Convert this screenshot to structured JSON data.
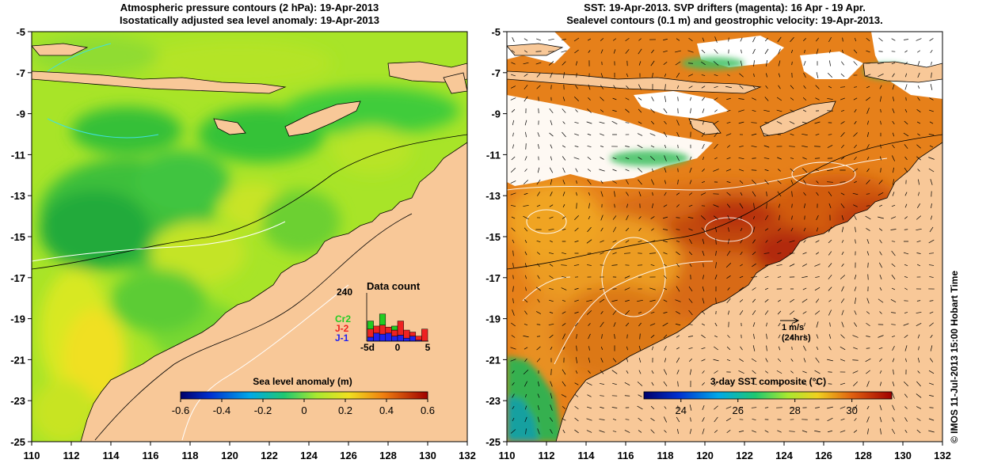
{
  "left_panel": {
    "title_line1": "Atmospheric pressure contours (2 hPa): 19-Apr-2013",
    "title_line2": "Isostatically adjusted sea level anomaly: 19-Apr-2013",
    "colorbar": {
      "title": "Sea level anomaly (m)",
      "ticks": [
        "-0.6",
        "-0.4",
        "-0.2",
        "0",
        "0.2",
        "0.4",
        "0.6"
      ],
      "range": [
        -0.6,
        0.6
      ]
    },
    "inset": {
      "title": "Data count",
      "ymax_label": "240",
      "legend": [
        {
          "label": "Cr2",
          "color": "#22cc22"
        },
        {
          "label": "J-2",
          "color": "#ee2222"
        },
        {
          "label": "J-1",
          "color": "#2222ee"
        }
      ],
      "x_ticks": [
        "-5d",
        "0",
        "5"
      ],
      "bars": [
        {
          "j1": 20,
          "j2": 40,
          "cr2": 40
        },
        {
          "j1": 40,
          "j2": 35,
          "cr2": 0
        },
        {
          "j1": 35,
          "j2": 45,
          "cr2": 55
        },
        {
          "j1": 40,
          "j2": 30,
          "cr2": 0
        },
        {
          "j1": 25,
          "j2": 30,
          "cr2": 20
        },
        {
          "j1": 30,
          "j2": 70,
          "cr2": 0
        },
        {
          "j1": 15,
          "j2": 40,
          "cr2": 0
        },
        {
          "j1": 25,
          "j2": 20,
          "cr2": 0
        },
        {
          "j1": 5,
          "j2": 20,
          "cr2": 0
        },
        {
          "j1": 0,
          "j2": 60,
          "cr2": 0
        }
      ]
    }
  },
  "right_panel": {
    "title_line1": "SST: 19-Apr-2013. SVP drifters (magenta): 16 Apr - 19 Apr.",
    "title_line2": "Sealevel contours (0.1 m) and geostrophic velocity: 19-Apr-2013.",
    "colorbar": {
      "title": "3-day SST composite (°C)",
      "ticks": [
        "24",
        "26",
        "28",
        "30"
      ],
      "range": [
        22.7,
        31.4
      ]
    },
    "velocity_key": {
      "line1": "1 m/s",
      "line2": "(24hrs)"
    }
  },
  "axes": {
    "x_ticks": [
      "110",
      "112",
      "114",
      "116",
      "118",
      "120",
      "122",
      "124",
      "126",
      "128",
      "130",
      "132"
    ],
    "y_ticks": [
      "-5",
      "-7",
      "-9",
      "-11",
      "-13",
      "-15",
      "-17",
      "-19",
      "-21",
      "-23",
      "-25"
    ],
    "lon_range": [
      110,
      132
    ],
    "lat_range": [
      -25,
      -5
    ]
  },
  "credit": "© IMOS 11-Jul-2013 15:00 Hobart Time",
  "colors": {
    "land": "#f8c898",
    "sla_mid": "#8ee83a",
    "sst_warm": "#e0740e",
    "cloud": "#ffffff"
  }
}
